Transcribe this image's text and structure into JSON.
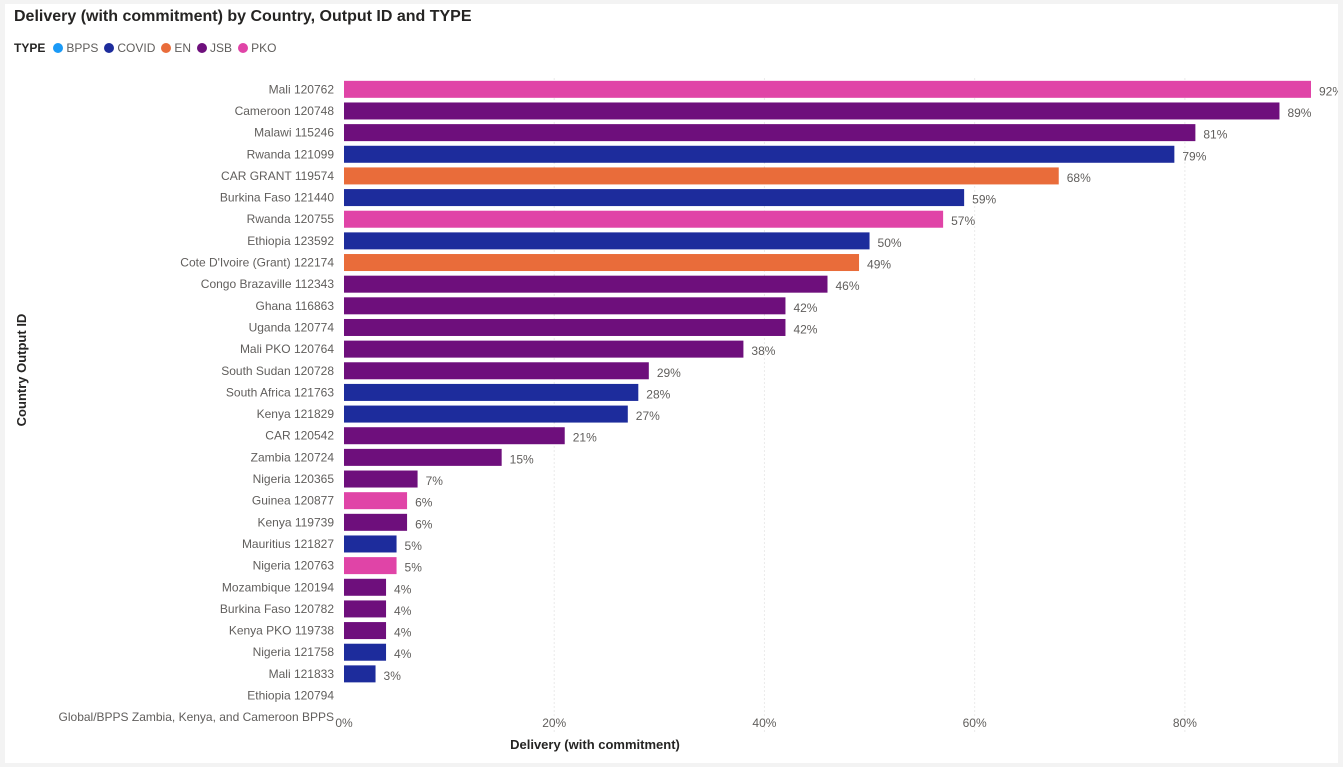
{
  "chart_data": {
    "type": "bar",
    "orientation": "horizontal",
    "title": "Delivery (with commitment) by Country, Output ID and TYPE",
    "xlabel": "Delivery (with commitment)",
    "ylabel": "Country Output ID",
    "xlim": [
      0,
      0.92
    ],
    "x_ticks": [
      0,
      0.2,
      0.4,
      0.6,
      0.8
    ],
    "x_tick_labels": [
      "0%",
      "20%",
      "40%",
      "60%",
      "80%"
    ],
    "grid": true,
    "legend": {
      "title": "TYPE",
      "placement": "top-left",
      "items": [
        {
          "name": "BPPS",
          "color": "#1a9af7"
        },
        {
          "name": "COVID",
          "color": "#1d2c9c"
        },
        {
          "name": "EN",
          "color": "#e96c3a"
        },
        {
          "name": "JSB",
          "color": "#6e0f7c"
        },
        {
          "name": "PKO",
          "color": "#e044a7"
        }
      ]
    },
    "categories": [
      "Mali 120762",
      "Cameroon 120748",
      "Malawi 115246",
      "Rwanda 121099",
      "CAR GRANT 119574",
      "Burkina Faso 121440",
      "Rwanda 120755",
      "Ethiopia 123592",
      "Cote D'Ivoire (Grant) 122174",
      "Congo Brazaville 112343",
      "Ghana 116863",
      "Uganda 120774",
      "Mali PKO 120764",
      "South Sudan 120728",
      "South Africa 121763",
      "Kenya 121829",
      "CAR 120542",
      "Zambia 120724",
      "Nigeria 120365",
      "Guinea 120877",
      "Kenya 119739",
      "Mauritius 121827",
      "Nigeria 120763",
      "Mozambique 120194",
      "Burkina Faso 120782",
      "Kenya PKO 119738",
      "Nigeria 121758",
      "Mali 121833",
      "Ethiopia 120794",
      "Global/BPPS Zambia, Kenya, and Cameroon BPPS"
    ],
    "values": [
      0.92,
      0.89,
      0.81,
      0.79,
      0.68,
      0.59,
      0.57,
      0.5,
      0.49,
      0.46,
      0.42,
      0.42,
      0.38,
      0.29,
      0.28,
      0.27,
      0.21,
      0.15,
      0.07,
      0.06,
      0.06,
      0.05,
      0.05,
      0.04,
      0.04,
      0.04,
      0.04,
      0.03,
      null,
      null
    ],
    "data_labels": [
      "92%",
      "89%",
      "81%",
      "79%",
      "68%",
      "59%",
      "57%",
      "50%",
      "49%",
      "46%",
      "42%",
      "42%",
      "38%",
      "29%",
      "28%",
      "27%",
      "21%",
      "15%",
      "7%",
      "6%",
      "6%",
      "5%",
      "5%",
      "4%",
      "4%",
      "4%",
      "4%",
      "3%",
      "",
      ""
    ],
    "types": [
      "PKO",
      "JSB",
      "JSB",
      "COVID",
      "EN",
      "COVID",
      "PKO",
      "COVID",
      "EN",
      "JSB",
      "JSB",
      "JSB",
      "JSB",
      "JSB",
      "COVID",
      "COVID",
      "JSB",
      "JSB",
      "JSB",
      "PKO",
      "JSB",
      "COVID",
      "PKO",
      "JSB",
      "JSB",
      "JSB",
      "COVID",
      "COVID",
      "",
      ""
    ]
  }
}
